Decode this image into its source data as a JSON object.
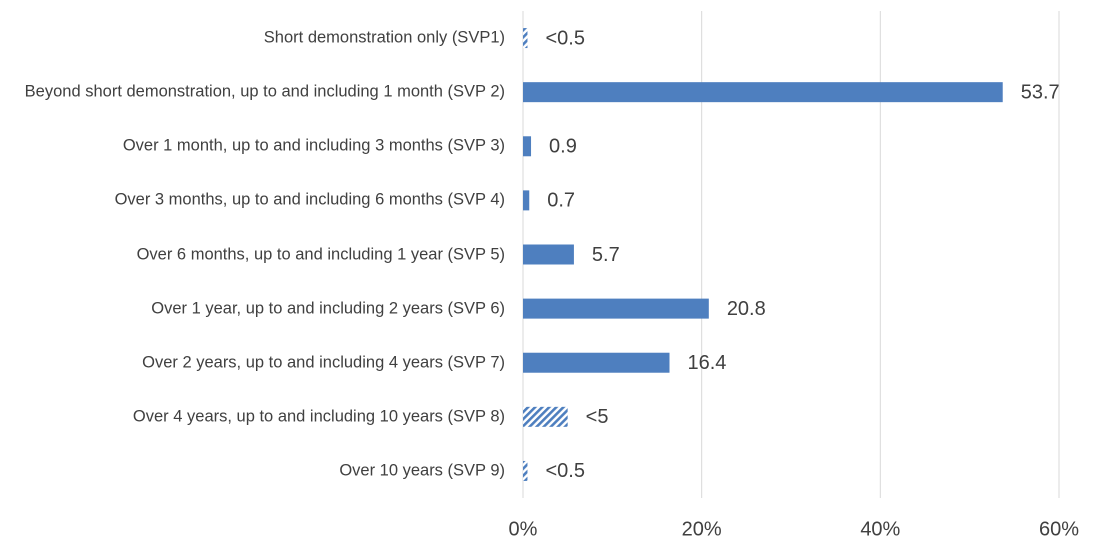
{
  "chart_data": {
    "type": "hbar",
    "categories": [
      "Short demonstration only (SVP1)",
      "Beyond short demonstration, up to and including 1 month (SVP 2)",
      "Over 1 month, up to and including 3 months (SVP 3)",
      "Over 3 months, up to and including 6 months (SVP 4)",
      "Over 6 months, up to and including 1 year (SVP 5)",
      "Over 1 year, up to and including 2 years (SVP 6)",
      "Over 2 years, up to and including 4 years (SVP 7)",
      "Over 4 years, up to and including 10 years (SVP 8)",
      "Over 10 years (SVP 9)"
    ],
    "values": [
      0.5,
      53.7,
      0.9,
      0.7,
      5.7,
      20.8,
      16.4,
      5,
      0.5
    ],
    "value_labels": [
      "<0.5",
      "53.7",
      "0.9",
      "0.7",
      "5.7",
      "20.8",
      "16.4",
      "<5",
      "<0.5"
    ],
    "hatched": [
      true,
      false,
      false,
      false,
      false,
      false,
      false,
      true,
      true
    ],
    "color": "#4e7fbf",
    "xlim": [
      0,
      60
    ],
    "xticks": [
      {
        "value": 0,
        "label": "0%"
      },
      {
        "value": 20,
        "label": "20%"
      },
      {
        "value": 40,
        "label": "40%"
      },
      {
        "value": 60,
        "label": "60%"
      }
    ],
    "grid": true
  }
}
